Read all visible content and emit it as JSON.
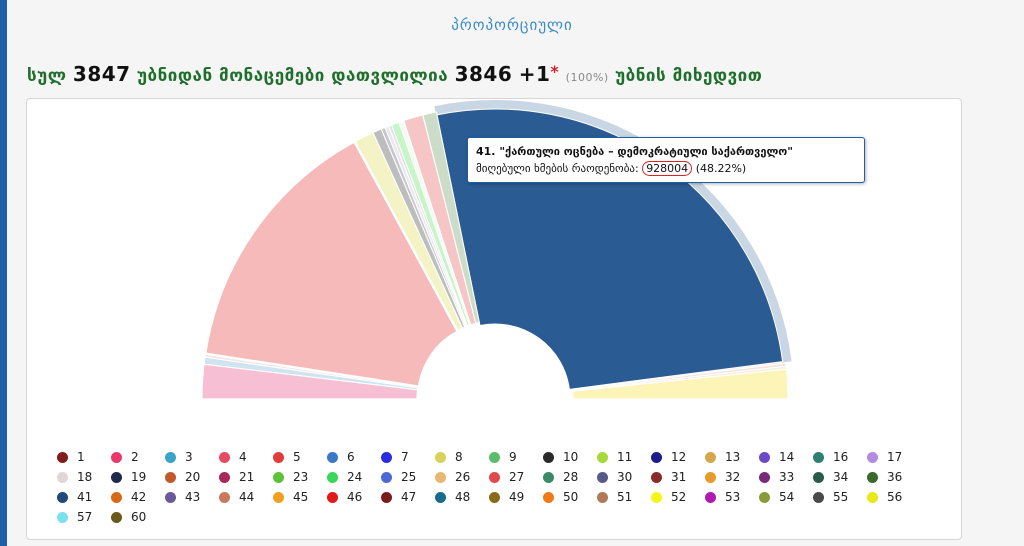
{
  "header": {
    "section_title": "პროპორციული",
    "summary_prefix": "სულ",
    "total_precincts": "3847",
    "summary_mid": "უბნიდან მონაცემები დათვლილია",
    "counted_precincts": "3846",
    "plus_sign": "+",
    "extra_count": "1",
    "star": "*",
    "percent": "(100%)",
    "summary_suffix": "უბნის მიხედვით"
  },
  "tooltip": {
    "title": "41. \"ქართული ოცნება – დემოკრატიული საქართველო\"",
    "votes_label": "მიღებული ხმების რაოდენობა:",
    "votes_value": "928004",
    "votes_pct": "(48.22%)"
  },
  "chart_data": {
    "type": "pie",
    "shape": "semicircle-donut",
    "slices": [
      {
        "party": "52",
        "value": 3.0,
        "color": "#fdf5b8"
      },
      {
        "party": "60",
        "value": 0.3,
        "color": "#f4f0e4"
      },
      {
        "party": "57",
        "value": 0.3,
        "color": "#f7e2dc"
      },
      {
        "party": "56",
        "value": 0.2,
        "color": "#f9ece6"
      },
      {
        "party": "41",
        "value": 48.22,
        "color": "#2a5b92",
        "highlighted": true
      },
      {
        "party": "36",
        "value": 1.4,
        "color": "#cddcc9"
      },
      {
        "party": "25",
        "value": 2.0,
        "color": "#f6c6c6"
      },
      {
        "party": "24",
        "value": 0.5,
        "color": "#f4fbf4"
      },
      {
        "party": "23",
        "value": 0.8,
        "color": "#c8f5c8"
      },
      {
        "party": "21",
        "value": 0.3,
        "color": "#e2e2e2"
      },
      {
        "party": "20",
        "value": 0.4,
        "color": "#e9e9ee"
      },
      {
        "party": "19",
        "value": 0.4,
        "color": "#c6c6d0"
      },
      {
        "party": "18",
        "value": 0.9,
        "color": "#bdbdbd"
      },
      {
        "party": "17",
        "value": 2.0,
        "color": "#f3f3c6"
      },
      {
        "party": "5",
        "value": 27.0,
        "color": "#f6baba"
      },
      {
        "party": "4",
        "value": 0.3,
        "color": "#f3e6e6"
      },
      {
        "party": "3",
        "value": 0.7,
        "color": "#cfe3f0"
      },
      {
        "party": "2",
        "value": 3.5,
        "color": "#f7bfd4"
      }
    ],
    "legend": [
      {
        "label": "1",
        "color": "#7f1d1d"
      },
      {
        "label": "2",
        "color": "#e8386e"
      },
      {
        "label": "3",
        "color": "#3aa3c7"
      },
      {
        "label": "4",
        "color": "#e84a64"
      },
      {
        "label": "5",
        "color": "#e23b3b"
      },
      {
        "label": "6",
        "color": "#3b78c9"
      },
      {
        "label": "7",
        "color": "#2b2be0"
      },
      {
        "label": "8",
        "color": "#d9d25a"
      },
      {
        "label": "9",
        "color": "#5bbd6a"
      },
      {
        "label": "10",
        "color": "#2a2a2a"
      },
      {
        "label": "11",
        "color": "#a6d93a"
      },
      {
        "label": "12",
        "color": "#1e1e8a"
      },
      {
        "label": "13",
        "color": "#d4a84a"
      },
      {
        "label": "14",
        "color": "#6a4ac6"
      },
      {
        "label": "16",
        "color": "#2f7f73"
      },
      {
        "label": "17",
        "color": "#b48be0"
      },
      {
        "label": "18",
        "color": "#e0d6d6"
      },
      {
        "label": "19",
        "color": "#1e2a4a"
      },
      {
        "label": "20",
        "color": "#c05a2a"
      },
      {
        "label": "21",
        "color": "#a8285a"
      },
      {
        "label": "23",
        "color": "#5cc23a"
      },
      {
        "label": "24",
        "color": "#3ad65a"
      },
      {
        "label": "25",
        "color": "#4a6ad6"
      },
      {
        "label": "26",
        "color": "#e8b870"
      },
      {
        "label": "27",
        "color": "#e04a4a"
      },
      {
        "label": "28",
        "color": "#3a8a6a"
      },
      {
        "label": "30",
        "color": "#5a5a8a"
      },
      {
        "label": "31",
        "color": "#8a2a2a"
      },
      {
        "label": "32",
        "color": "#e89a2a"
      },
      {
        "label": "33",
        "color": "#7a2a7a"
      },
      {
        "label": "34",
        "color": "#2a5a4a"
      },
      {
        "label": "36",
        "color": "#3a6a2a"
      },
      {
        "label": "41",
        "color": "#1f4a7a"
      },
      {
        "label": "42",
        "color": "#d46a1a"
      },
      {
        "label": "43",
        "color": "#6a5a9a"
      },
      {
        "label": "44",
        "color": "#c87a5a"
      },
      {
        "label": "45",
        "color": "#f0a020"
      },
      {
        "label": "46",
        "color": "#e01a1a"
      },
      {
        "label": "47",
        "color": "#7a1a1a"
      },
      {
        "label": "48",
        "color": "#1a6a8a"
      },
      {
        "label": "49",
        "color": "#8a6a1a"
      },
      {
        "label": "50",
        "color": "#f07a1a"
      },
      {
        "label": "51",
        "color": "#b07a5a"
      },
      {
        "label": "52",
        "color": "#f5f51a"
      },
      {
        "label": "53",
        "color": "#b01ab0"
      },
      {
        "label": "54",
        "color": "#8a9a3a"
      },
      {
        "label": "55",
        "color": "#4a4a4a"
      },
      {
        "label": "56",
        "color": "#e8e81a"
      },
      {
        "label": "57",
        "color": "#7ae0f0"
      },
      {
        "label": "60",
        "color": "#6a5a1a"
      }
    ]
  }
}
